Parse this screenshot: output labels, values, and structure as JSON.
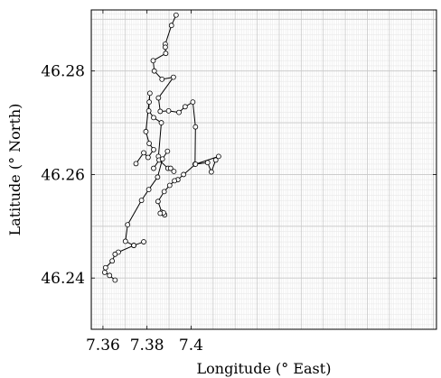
{
  "chart_data": {
    "type": "line",
    "title": "",
    "xlabel": "Longitude (° East)",
    "ylabel": "Latitude (° North)",
    "xlim": [
      7.3547,
      7.5114
    ],
    "ylim": [
      46.2301,
      46.2918
    ],
    "grid": true,
    "minor_grid": true,
    "marker": "circle",
    "xticks": [
      7.36,
      7.38,
      7.4
    ],
    "xtick_labels": [
      "7.36",
      "7.38",
      "7.4"
    ],
    "yticks": [
      46.24,
      46.26,
      46.28
    ],
    "ytick_labels": [
      "46.24",
      "46.26",
      "46.28"
    ],
    "colors": {
      "line": "#000000",
      "marker_edge": "#000000",
      "marker_fill": "#ffffff",
      "major_grid": "#c8c8c8",
      "minor_grid": "#e9e9e9",
      "frame": "#000000"
    },
    "series": [
      {
        "x": [
          7.3932,
          7.3911,
          7.3883,
          7.3883,
          7.3885,
          7.3828,
          7.3833,
          7.3868,
          7.392,
          7.3852,
          7.386,
          7.3898,
          7.3945,
          7.3973,
          7.4008,
          7.402,
          7.4018,
          7.4075,
          7.4092,
          7.4112,
          7.4125,
          7.402,
          7.3966,
          7.394,
          7.3925,
          7.3903,
          7.3878,
          7.385,
          7.3867,
          7.388,
          7.3875,
          7.386
        ],
        "y": [
          46.2908,
          46.2888,
          46.2852,
          46.2846,
          46.2834,
          46.282,
          46.28,
          46.2784,
          46.2788,
          46.2748,
          46.2722,
          46.2723,
          46.272,
          46.2731,
          46.274,
          46.2692,
          46.262,
          46.2623,
          46.2605,
          46.2628,
          46.2635,
          46.262,
          46.26,
          46.259,
          46.2588,
          46.2579,
          46.2567,
          46.2548,
          46.2527,
          46.2522,
          46.2526,
          46.2525
        ]
      },
      {
        "x": [
          7.3852,
          7.3865,
          7.383,
          7.3808,
          7.381,
          7.3813,
          7.3795,
          7.381,
          7.383,
          7.3805,
          7.3785,
          7.375
        ],
        "y": [
          46.2635,
          46.27,
          46.271,
          46.2723,
          46.274,
          46.2757,
          46.2683,
          46.266,
          46.2648,
          46.2633,
          46.2642,
          46.2621
        ]
      },
      {
        "x": [
          7.383,
          7.3855,
          7.3895,
          7.3907,
          7.3922
        ],
        "y": [
          46.2612,
          46.2628,
          46.2612,
          46.2612,
          46.2606
        ]
      },
      {
        "x": [
          7.3893,
          7.387,
          7.3848,
          7.3808,
          7.3775,
          7.3712,
          7.3702,
          7.374,
          7.3785
        ],
        "y": [
          46.2645,
          46.263,
          46.2595,
          46.2571,
          46.255,
          46.2503,
          46.2471,
          46.2463,
          46.247
        ]
      },
      {
        "x": [
          7.374,
          7.367,
          7.3655,
          7.3642,
          7.3612,
          7.3608,
          7.363,
          7.3655
        ],
        "y": [
          46.2463,
          46.245,
          46.2446,
          46.2433,
          46.242,
          46.2411,
          46.2405,
          46.2396
        ]
      }
    ]
  }
}
